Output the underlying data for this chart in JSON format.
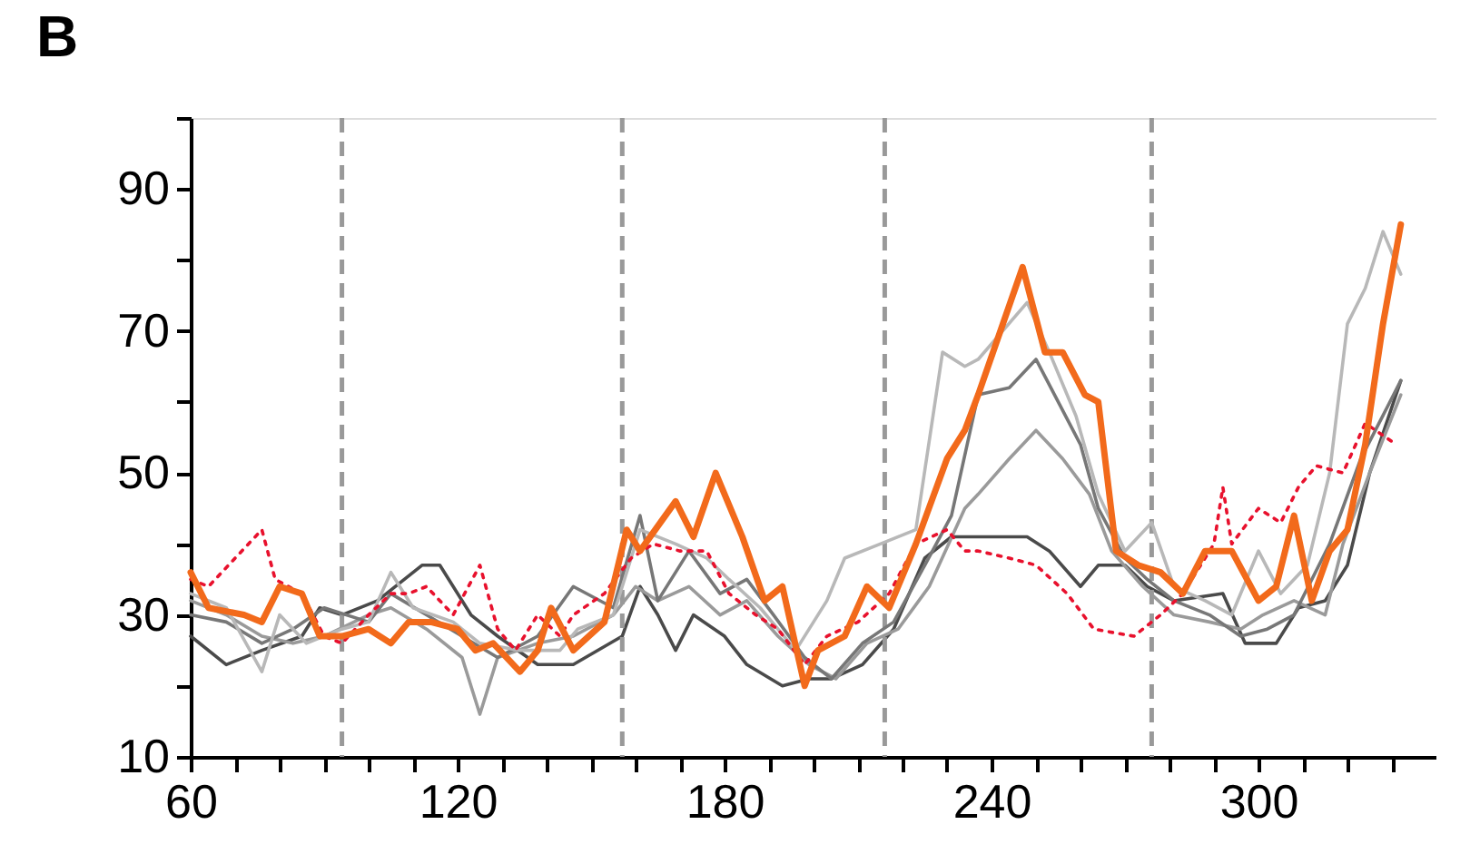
{
  "chart_data": {
    "type": "line",
    "title": "B",
    "xlim": [
      60,
      340
    ],
    "ylim": [
      10,
      100
    ],
    "xticks": [
      60,
      {
        "value": 70,
        "label": null
      },
      {
        "value": 80,
        "label": null
      },
      {
        "value": 90,
        "label": null
      },
      {
        "value": 100,
        "label": null
      },
      {
        "value": 110,
        "label": null
      },
      120,
      {
        "value": 130,
        "label": null
      },
      {
        "value": 140,
        "label": null
      },
      {
        "value": 150,
        "label": null
      },
      {
        "value": 160,
        "label": null
      },
      {
        "value": 170,
        "label": null
      },
      180,
      {
        "value": 190,
        "label": null
      },
      {
        "value": 200,
        "label": null
      },
      {
        "value": 210,
        "label": null
      },
      {
        "value": 220,
        "label": null
      },
      {
        "value": 230,
        "label": null
      },
      240,
      {
        "value": 250,
        "label": null
      },
      {
        "value": 260,
        "label": null
      },
      {
        "value": 270,
        "label": null
      },
      {
        "value": 280,
        "label": null
      },
      {
        "value": 290,
        "label": null
      },
      300,
      {
        "value": 310,
        "label": null
      },
      {
        "value": 320,
        "label": null
      },
      {
        "value": 330,
        "label": null
      }
    ],
    "yticks": [
      10,
      {
        "value": 20,
        "label": null
      },
      30,
      {
        "value": 40,
        "label": null
      },
      50,
      {
        "value": 60,
        "label": null
      },
      70,
      {
        "value": 80,
        "label": null
      },
      90,
      {
        "value": 100,
        "label": null
      }
    ],
    "grid": false,
    "line_style": "solid",
    "ref_lines": [
      {
        "axis": "x",
        "value": 94,
        "color": "#999999",
        "line_style": "dashed"
      },
      {
        "axis": "x",
        "value": 157,
        "color": "#999999",
        "line_style": "dashed"
      },
      {
        "axis": "x",
        "value": 216,
        "color": "#999999",
        "line_style": "dashed"
      },
      {
        "axis": "x",
        "value": 276,
        "color": "#999999",
        "line_style": "dashed"
      }
    ],
    "series": [
      {
        "color": "#4a4a4a",
        "x": [
          60,
          68,
          76,
          85,
          89,
          94,
          102,
          112,
          116,
          123,
          129,
          138,
          146,
          157,
          161,
          165,
          169,
          173,
          180,
          185,
          193,
          199,
          204,
          211,
          218,
          225,
          231,
          237,
          248,
          253,
          260,
          264,
          270,
          275,
          281,
          292,
          297,
          304,
          309,
          315,
          320,
          325,
          332
        ],
        "values": [
          27,
          23,
          25,
          27,
          31,
          30,
          32,
          37,
          37,
          30,
          27,
          23,
          23,
          27,
          34,
          30,
          25,
          30,
          27,
          23,
          20,
          21,
          21,
          23,
          28,
          38,
          41,
          41,
          41,
          39,
          34,
          37,
          37,
          34,
          32,
          33,
          26,
          26,
          31,
          32,
          37,
          50,
          63
        ]
      },
      {
        "color": "#9a9a9a",
        "x": [
          60,
          68,
          76,
          83,
          90,
          100,
          105,
          113,
          121,
          125,
          129,
          138,
          146,
          155,
          160,
          165,
          172,
          179,
          185,
          192,
          199,
          205,
          212,
          219,
          226,
          234,
          237,
          244,
          250,
          256,
          262,
          267,
          274,
          281,
          289,
          296,
          301,
          308,
          315,
          319,
          325,
          332
        ],
        "values": [
          32,
          30,
          27,
          26,
          27,
          30,
          31,
          28,
          24,
          16,
          24,
          26,
          27,
          30,
          34,
          32,
          34,
          30,
          32,
          27,
          23,
          21,
          26,
          28,
          34,
          45,
          47,
          52,
          56,
          52,
          47,
          39,
          34,
          30,
          29,
          28,
          30,
          32,
          30,
          40,
          50,
          61
        ]
      },
      {
        "color": "#777777",
        "x": [
          60,
          68,
          76,
          83,
          90,
          100,
          105,
          113,
          121,
          129,
          138,
          146,
          155,
          161,
          165,
          172,
          179,
          185,
          191,
          198,
          204,
          211,
          218,
          225,
          231,
          237,
          244,
          250,
          255,
          260,
          264,
          270,
          275,
          281,
          289,
          296,
          302,
          308,
          316,
          323,
          332
        ],
        "values": [
          30,
          29,
          26,
          28,
          31,
          29,
          33,
          30,
          27,
          24,
          27,
          34,
          31,
          44,
          32,
          39,
          33,
          35,
          30,
          24,
          21,
          26,
          29,
          37,
          44,
          61,
          62,
          66,
          60,
          54,
          45,
          38,
          35,
          32,
          30,
          27,
          28,
          30,
          40,
          52,
          63
        ]
      },
      {
        "color": "#b8b8b8",
        "x": [
          60,
          68,
          76,
          80,
          86,
          94,
          100,
          105,
          110,
          119,
          125,
          134,
          143,
          147,
          155,
          161,
          169,
          176,
          181,
          188,
          196,
          203,
          207,
          215,
          223,
          229,
          234,
          237,
          248,
          253,
          259,
          264,
          270,
          276,
          281,
          288,
          294,
          300,
          305,
          311,
          316,
          320,
          324,
          328,
          332
        ],
        "values": [
          33,
          31,
          22,
          30,
          26,
          28,
          29,
          36,
          31,
          29,
          26,
          25,
          25,
          28,
          30,
          42,
          40,
          38,
          35,
          31,
          25,
          32,
          38,
          40,
          42,
          67,
          65,
          66,
          74,
          67,
          58,
          47,
          39,
          43,
          34,
          32,
          30,
          39,
          33,
          37,
          50,
          71,
          76,
          84,
          78
        ]
      },
      {
        "color": "#e8112d",
        "line_style": "dotted",
        "x": [
          60,
          64,
          70,
          76,
          79,
          85,
          90,
          94,
          100,
          105,
          109,
          113,
          119,
          125,
          129,
          133,
          138,
          143,
          146,
          153,
          159,
          164,
          170,
          176,
          181,
          187,
          192,
          198,
          203,
          210,
          217,
          223,
          230,
          234,
          237,
          244,
          250,
          257,
          263,
          272,
          278,
          283,
          290,
          292,
          294,
          300,
          305,
          309,
          313,
          319,
          324,
          331
        ],
        "values": [
          35,
          34,
          38,
          42,
          35,
          33,
          27,
          26,
          30,
          33,
          33,
          34,
          30,
          37,
          28,
          25,
          30,
          27,
          30,
          33,
          38,
          40,
          39,
          39,
          33,
          30,
          28,
          23,
          27,
          29,
          33,
          40,
          42,
          39,
          39,
          38,
          37,
          33,
          28,
          27,
          30,
          33,
          40,
          48,
          40,
          45,
          43,
          48,
          51,
          50,
          57,
          54
        ]
      },
      {
        "color": "#f26a1b",
        "x": [
          60,
          64,
          72,
          76,
          80,
          85,
          89,
          94,
          100,
          105,
          109,
          114,
          120,
          124,
          128,
          134,
          138,
          141,
          146,
          153,
          158,
          161,
          169,
          173,
          178,
          184,
          189,
          193,
          198,
          201,
          207,
          212,
          217,
          223,
          230,
          234,
          237,
          247,
          252,
          256,
          261,
          264,
          268,
          273,
          278,
          283,
          288,
          294,
          300,
          304,
          308,
          312,
          316,
          320,
          324,
          328,
          332
        ],
        "values": [
          36,
          31,
          30,
          29,
          34,
          33,
          27,
          27,
          28,
          26,
          29,
          29,
          28,
          25,
          26,
          22,
          25,
          31,
          25,
          29,
          42,
          39,
          46,
          41,
          50,
          41,
          32,
          34,
          20,
          25,
          27,
          34,
          31,
          40,
          52,
          56,
          61,
          79,
          67,
          67,
          61,
          60,
          39,
          37,
          36,
          33,
          39,
          39,
          32,
          34,
          44,
          32,
          39,
          42,
          54,
          71,
          85
        ]
      }
    ]
  }
}
